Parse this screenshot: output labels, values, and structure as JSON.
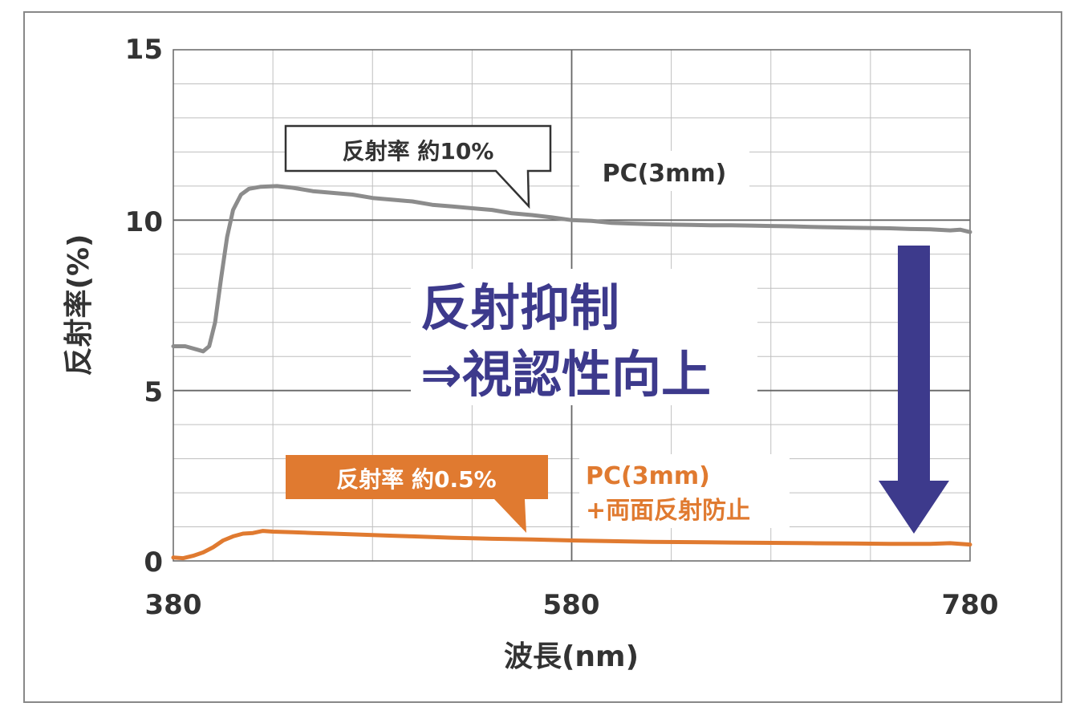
{
  "chart_data": {
    "type": "line",
    "xlabel": "波長(nm)",
    "ylabel": "反射率(%)",
    "xlim": [
      380,
      780
    ],
    "ylim": [
      0,
      15
    ],
    "x_ticks": [
      "380",
      "580",
      "780"
    ],
    "y_ticks": [
      "0",
      "5",
      "10",
      "15"
    ],
    "grid": true,
    "series": [
      {
        "name": "PC(3mm)",
        "color": "#8c8c8c",
        "points": [
          [
            380,
            6.3
          ],
          [
            386,
            6.3
          ],
          [
            392,
            6.2
          ],
          [
            395,
            6.15
          ],
          [
            398,
            6.3
          ],
          [
            401,
            7.0
          ],
          [
            404,
            8.3
          ],
          [
            407,
            9.5
          ],
          [
            410,
            10.3
          ],
          [
            414,
            10.75
          ],
          [
            418,
            10.92
          ],
          [
            424,
            10.98
          ],
          [
            432,
            11.0
          ],
          [
            440,
            10.95
          ],
          [
            450,
            10.85
          ],
          [
            460,
            10.8
          ],
          [
            470,
            10.75
          ],
          [
            480,
            10.65
          ],
          [
            490,
            10.6
          ],
          [
            500,
            10.55
          ],
          [
            510,
            10.45
          ],
          [
            520,
            10.4
          ],
          [
            530,
            10.35
          ],
          [
            540,
            10.3
          ],
          [
            550,
            10.2
          ],
          [
            560,
            10.15
          ],
          [
            570,
            10.08
          ],
          [
            580,
            10.0
          ],
          [
            590,
            9.98
          ],
          [
            600,
            9.92
          ],
          [
            610,
            9.9
          ],
          [
            620,
            9.88
          ],
          [
            630,
            9.87
          ],
          [
            640,
            9.86
          ],
          [
            650,
            9.85
          ],
          [
            660,
            9.85
          ],
          [
            670,
            9.84
          ],
          [
            680,
            9.83
          ],
          [
            690,
            9.82
          ],
          [
            700,
            9.8
          ],
          [
            710,
            9.79
          ],
          [
            720,
            9.78
          ],
          [
            730,
            9.77
          ],
          [
            740,
            9.76
          ],
          [
            750,
            9.74
          ],
          [
            760,
            9.73
          ],
          [
            770,
            9.7
          ],
          [
            775,
            9.72
          ],
          [
            780,
            9.65
          ]
        ]
      },
      {
        "name": "PC(3mm)+両面反射防止",
        "color": "#e07a30",
        "points": [
          [
            380,
            0.1
          ],
          [
            385,
            0.08
          ],
          [
            390,
            0.15
          ],
          [
            395,
            0.25
          ],
          [
            400,
            0.4
          ],
          [
            405,
            0.6
          ],
          [
            410,
            0.72
          ],
          [
            415,
            0.8
          ],
          [
            420,
            0.82
          ],
          [
            425,
            0.88
          ],
          [
            430,
            0.86
          ],
          [
            440,
            0.84
          ],
          [
            450,
            0.82
          ],
          [
            460,
            0.8
          ],
          [
            470,
            0.78
          ],
          [
            480,
            0.76
          ],
          [
            490,
            0.74
          ],
          [
            500,
            0.72
          ],
          [
            520,
            0.68
          ],
          [
            540,
            0.65
          ],
          [
            560,
            0.63
          ],
          [
            580,
            0.6
          ],
          [
            600,
            0.58
          ],
          [
            620,
            0.56
          ],
          [
            640,
            0.55
          ],
          [
            660,
            0.54
          ],
          [
            680,
            0.53
          ],
          [
            700,
            0.52
          ],
          [
            720,
            0.51
          ],
          [
            740,
            0.5
          ],
          [
            760,
            0.5
          ],
          [
            770,
            0.52
          ],
          [
            780,
            0.48
          ]
        ]
      }
    ],
    "annotations": {
      "gray_callout": "反射率 約10%",
      "gray_label": "PC(3mm)",
      "orange_callout": "反射率 約0.5%",
      "orange_label_line1": "PC(3mm)",
      "orange_label_line2": "+両面反射防止",
      "message_line1": "反射抑制",
      "message_line2": "⇒視認性向上"
    },
    "colors": {
      "gray": "#8c8c8c",
      "orange": "#e07a30",
      "navy": "#3d3a8c",
      "text": "#333333"
    }
  }
}
